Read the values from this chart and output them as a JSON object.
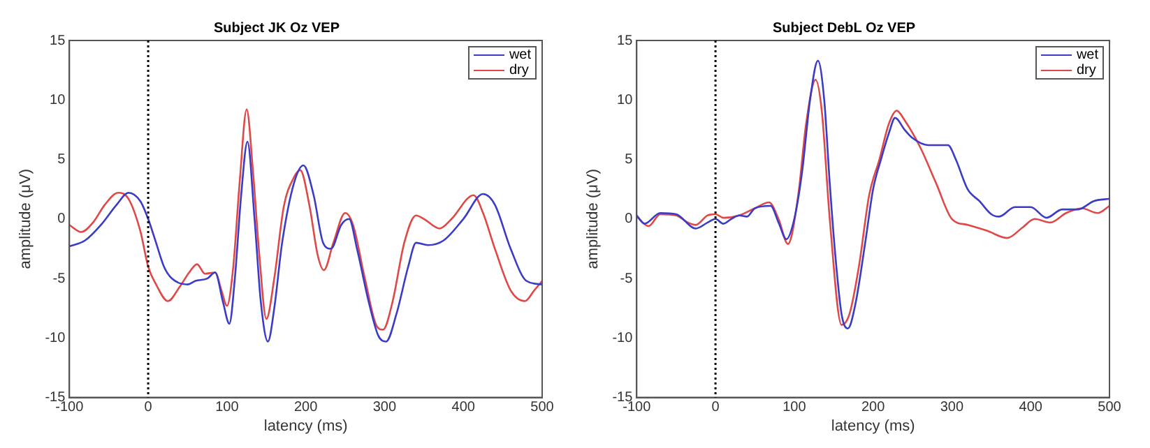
{
  "chart_data": [
    {
      "type": "line",
      "title": "Subject JK Oz VEP",
      "xlabel": "latency (ms)",
      "ylabel": "amplitude (μV)",
      "xlim": [
        -100,
        500
      ],
      "xticks": [
        -100,
        0,
        100,
        200,
        300,
        400,
        500
      ],
      "ylim": [
        -15,
        15
      ],
      "yticks": [
        -15,
        -10,
        -5,
        0,
        5,
        10,
        15
      ],
      "grid": false,
      "legend": "top right",
      "marker": "none",
      "line_style": "solid",
      "ref_lines": [
        {
          "axis": "x",
          "value": 0,
          "color": "#000000",
          "line_style": "dotted"
        }
      ],
      "series": [
        {
          "name": "wet",
          "color": "#3b3bc8",
          "x": [
            -100,
            -80,
            -60,
            -40,
            -25,
            -10,
            0,
            10,
            20,
            30,
            50,
            60,
            75,
            85,
            95,
            103,
            110,
            118,
            126,
            135,
            143,
            152,
            160,
            170,
            185,
            197,
            210,
            222,
            232,
            245,
            255,
            265,
            280,
            292,
            302,
            315,
            330,
            340,
            355,
            375,
            400,
            425,
            440,
            460,
            480,
            500
          ],
          "values": [
            -2.3,
            -1.8,
            -0.5,
            1.2,
            2.2,
            1.5,
            0,
            -2,
            -4,
            -5,
            -5.5,
            -5.2,
            -5,
            -4.5,
            -7,
            -8.8,
            -5,
            2,
            6.5,
            0,
            -7,
            -10.3,
            -7.5,
            -2,
            3,
            4.5,
            2,
            -2,
            -2.5,
            -0.5,
            0,
            -2.5,
            -7,
            -9.8,
            -10.3,
            -8,
            -4,
            -2,
            -2.2,
            -1.8,
            0,
            2.1,
            1.2,
            -2.5,
            -5.2,
            -5.5
          ]
        },
        {
          "name": "dry",
          "color": "#e04848",
          "x": [
            -100,
            -85,
            -70,
            -55,
            -38,
            -25,
            -10,
            0,
            10,
            25,
            40,
            52,
            62,
            72,
            85,
            93,
            100,
            108,
            116,
            125,
            133,
            141,
            150,
            160,
            172,
            185,
            193,
            205,
            215,
            223,
            235,
            250,
            260,
            275,
            290,
            298,
            310,
            325,
            340,
            350,
            370,
            385,
            413,
            425,
            440,
            460,
            478,
            490,
            500
          ],
          "values": [
            -0.5,
            -1.1,
            -0.3,
            1.2,
            2.2,
            1.7,
            -1,
            -4,
            -5.5,
            -6.9,
            -5.7,
            -4.5,
            -3.8,
            -4.6,
            -4.5,
            -6,
            -7.3,
            -4,
            3,
            9.2,
            4,
            -3,
            -8.4,
            -5,
            1,
            3.5,
            4.1,
            1,
            -3,
            -4.3,
            -2,
            0.5,
            -0.5,
            -5,
            -9,
            -9.3,
            -7,
            -2,
            0.3,
            0,
            -0.8,
            0,
            2,
            0.5,
            -2.5,
            -6,
            -6.9,
            -6,
            -5.2
          ]
        }
      ]
    },
    {
      "type": "line",
      "title": "Subject DebL Oz VEP",
      "xlabel": "latency (ms)",
      "ylabel": "amplitude (μV)",
      "xlim": [
        -100,
        500
      ],
      "xticks": [
        -100,
        0,
        100,
        200,
        300,
        400,
        500
      ],
      "ylim": [
        -15,
        15
      ],
      "yticks": [
        -15,
        -10,
        -5,
        0,
        5,
        10,
        15
      ],
      "grid": false,
      "legend": "top right",
      "marker": "none",
      "line_style": "solid",
      "ref_lines": [
        {
          "axis": "x",
          "value": 0,
          "color": "#000000",
          "line_style": "dotted"
        }
      ],
      "series": [
        {
          "name": "wet",
          "color": "#3b3bc8",
          "x": [
            -100,
            -90,
            -70,
            -50,
            -25,
            -10,
            0,
            10,
            20,
            30,
            40,
            50,
            70,
            80,
            90,
            100,
            110,
            120,
            130,
            138,
            145,
            152,
            160,
            168,
            178,
            190,
            200,
            210,
            220,
            228,
            240,
            250,
            270,
            295,
            305,
            320,
            335,
            350,
            360,
            380,
            400,
            420,
            440,
            460,
            480,
            500
          ],
          "values": [
            0.3,
            -0.4,
            0.5,
            0.4,
            -0.8,
            -0.3,
            0,
            -0.4,
            0,
            0.3,
            0.2,
            0.9,
            1.1,
            -0.3,
            -1.7,
            0,
            4,
            10,
            13.3,
            10,
            3,
            -3,
            -8,
            -9.2,
            -7,
            -2,
            2.5,
            5,
            7.2,
            8.5,
            7.5,
            6.8,
            6.2,
            6.2,
            5,
            2.5,
            1.5,
            0.4,
            0.2,
            1,
            1,
            0.1,
            0.8,
            0.8,
            1.5,
            1.7
          ]
        },
        {
          "name": "dry",
          "color": "#e04848",
          "x": [
            -100,
            -85,
            -70,
            -50,
            -35,
            -25,
            -10,
            0,
            10,
            30,
            50,
            68,
            80,
            92,
            105,
            115,
            127,
            135,
            145,
            160,
            170,
            182,
            195,
            208,
            220,
            230,
            240,
            260,
            280,
            300,
            320,
            345,
            370,
            390,
            405,
            425,
            445,
            465,
            485,
            500
          ],
          "values": [
            0.2,
            -0.6,
            0.4,
            0.3,
            -0.3,
            -0.5,
            0.3,
            0.4,
            0.1,
            0.3,
            0.9,
            1.4,
            0,
            -2.1,
            2,
            8,
            11.7,
            9,
            0,
            -8.9,
            -8,
            -4,
            2,
            5,
            8,
            9.1,
            8.3,
            6,
            3,
            0,
            -0.5,
            -1,
            -1.6,
            -0.7,
            0,
            -0.3,
            0.5,
            0.9,
            0.5,
            1.1
          ]
        }
      ]
    }
  ]
}
